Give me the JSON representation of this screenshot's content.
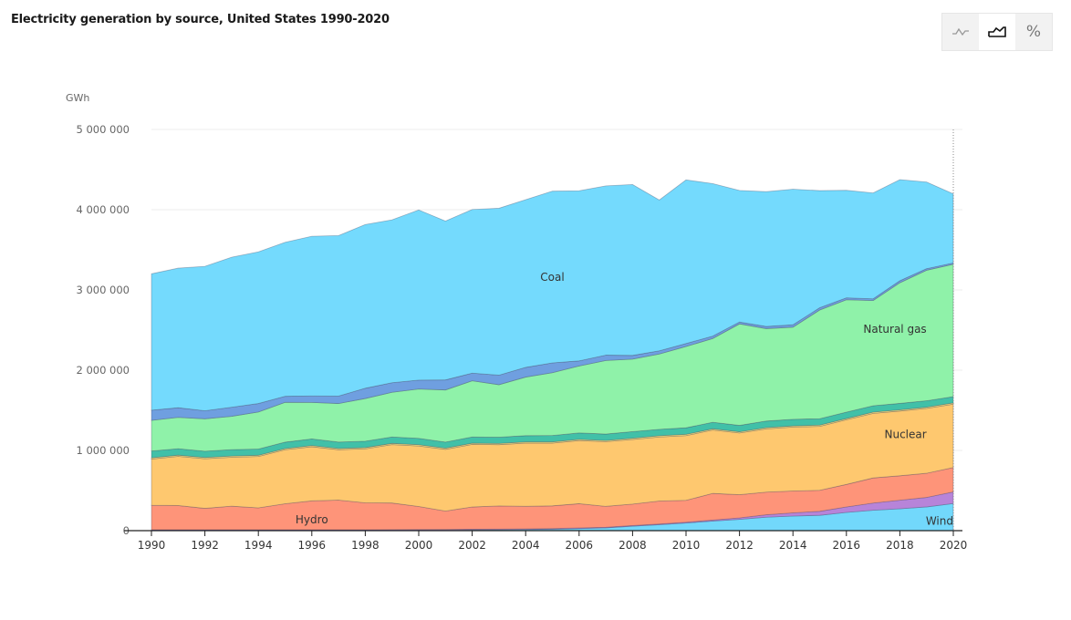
{
  "title": "Electricity generation by source, United States 1990-2020",
  "toolbar": {
    "buttons": [
      {
        "icon": "line-chart-icon",
        "active": false
      },
      {
        "icon": "area-chart-icon",
        "active": true
      },
      {
        "icon": "percent-icon",
        "active": false
      }
    ]
  },
  "chart_data": {
    "type": "area",
    "stacked": true,
    "unit_label": "GWh",
    "ylim": [
      0,
      5000000
    ],
    "yticks": [
      0,
      1000000,
      2000000,
      3000000,
      4000000,
      5000000
    ],
    "ytick_labels": [
      "0",
      "1 000 000",
      "2 000 000",
      "3 000 000",
      "4 000 000",
      "5 000 000"
    ],
    "xticks": [
      1990,
      1992,
      1994,
      1996,
      1998,
      2000,
      2002,
      2004,
      2006,
      2008,
      2010,
      2012,
      2014,
      2016,
      2018,
      2020
    ],
    "xtick_labels": [
      "1990",
      "1992",
      "1994",
      "1996",
      "1998",
      "2000",
      "2002",
      "2004",
      "2006",
      "2008",
      "2010",
      "2012",
      "2014",
      "2016",
      "2018",
      "2020"
    ],
    "grid": true,
    "x": [
      1990,
      1991,
      1992,
      1993,
      1994,
      1995,
      1996,
      1997,
      1998,
      1999,
      2000,
      2001,
      2002,
      2003,
      2004,
      2005,
      2006,
      2007,
      2008,
      2009,
      2010,
      2011,
      2012,
      2013,
      2014,
      2015,
      2016,
      2017,
      2018,
      2019,
      2020
    ],
    "series": [
      {
        "name": "Wind",
        "label": "Wind",
        "color": "#72d8fb",
        "values": [
          3000,
          3000,
          3000,
          3000,
          3400,
          3200,
          3200,
          3300,
          3000,
          4500,
          5600,
          6700,
          10000,
          11000,
          14000,
          18000,
          26000,
          34000,
          55000,
          74000,
          95000,
          120000,
          141000,
          168000,
          182000,
          191000,
          227000,
          254000,
          273000,
          296000,
          338000
        ]
      },
      {
        "color": "#b784d9",
        "values": [
          8000,
          8000,
          8000,
          8000,
          8000,
          8000,
          8000,
          8000,
          8000,
          8000,
          8000,
          8000,
          8000,
          8000,
          8000,
          8000,
          8000,
          8000,
          9000,
          9000,
          10000,
          12000,
          18000,
          30000,
          40000,
          50000,
          68000,
          90000,
          106000,
          118000,
          145000
        ]
      },
      {
        "name": "Hydro",
        "label": "Hydro",
        "color": "#fe9479",
        "values": [
          305000,
          302000,
          267000,
          294000,
          273000,
          324000,
          360000,
          369000,
          336000,
          332000,
          288000,
          230000,
          277000,
          289000,
          281000,
          283000,
          302000,
          261000,
          267000,
          286000,
          273000,
          332000,
          289000,
          282000,
          272000,
          262000,
          281000,
          313000,
          305000,
          301000,
          304000
        ]
      },
      {
        "name": "Nuclear",
        "label": "Nuclear",
        "color": "#fec86f",
        "values": [
          577000,
          613000,
          619000,
          610000,
          640000,
          673000,
          675000,
          629000,
          673000,
          728000,
          754000,
          769000,
          780000,
          764000,
          788000,
          782000,
          787000,
          806000,
          806000,
          799000,
          807000,
          790000,
          769000,
          789000,
          797000,
          797000,
          806000,
          805000,
          807000,
          809000,
          790000
        ]
      },
      {
        "color": "#f3e07a",
        "values": [
          15000,
          15000,
          15000,
          15000,
          15000,
          15000,
          15000,
          15000,
          15000,
          15000,
          15000,
          15000,
          15000,
          15000,
          15000,
          15000,
          15000,
          15000,
          15000,
          15000,
          15000,
          15000,
          15000,
          15000,
          15000,
          15000,
          15000,
          15000,
          15000,
          15000,
          15000
        ]
      },
      {
        "color": "#41c0a8",
        "values": [
          85000,
          80000,
          78000,
          80000,
          78000,
          80000,
          82000,
          80000,
          80000,
          80000,
          80000,
          75000,
          78000,
          78000,
          78000,
          80000,
          80000,
          80000,
          82000,
          80000,
          82000,
          82000,
          80000,
          82000,
          82000,
          80000,
          80000,
          80000,
          80000,
          80000,
          78000
        ]
      },
      {
        "name": "Natural gas",
        "label": "Natural gas",
        "color": "#8ff2a9",
        "values": [
          382000,
          391000,
          404000,
          415000,
          461000,
          496000,
          455000,
          480000,
          532000,
          557000,
          615000,
          650000,
          700000,
          654000,
          730000,
          783000,
          834000,
          917000,
          904000,
          939000,
          1013000,
          1044000,
          1265000,
          1152000,
          1148000,
          1355000,
          1401000,
          1311000,
          1504000,
          1627000,
          1650000
        ]
      },
      {
        "color": "#6f9fe0",
        "values": [
          126000,
          120000,
          100000,
          113000,
          106000,
          75000,
          81000,
          93000,
          128000,
          119000,
          111000,
          125000,
          95000,
          119000,
          121000,
          122000,
          64000,
          66000,
          46000,
          39000,
          37000,
          30000,
          23000,
          27000,
          30000,
          28000,
          24000,
          21000,
          25000,
          19000,
          17000
        ]
      },
      {
        "name": "Coal",
        "label": "Coal",
        "color": "#74dafd",
        "values": [
          1700000,
          1740000,
          1800000,
          1870000,
          1890000,
          1920000,
          1990000,
          2000000,
          2040000,
          2030000,
          2120000,
          1980000,
          2040000,
          2080000,
          2090000,
          2140000,
          2120000,
          2110000,
          2130000,
          1880000,
          2040000,
          1900000,
          1640000,
          1680000,
          1690000,
          1460000,
          1340000,
          1320000,
          1260000,
          1080000,
          860000
        ]
      }
    ]
  }
}
